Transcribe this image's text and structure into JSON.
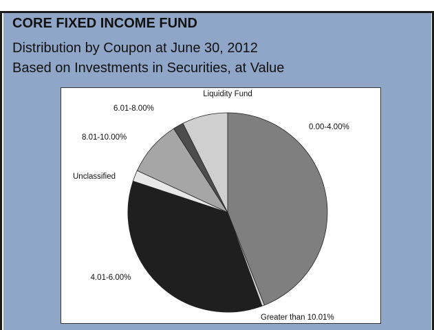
{
  "header": {
    "title": "CORE FIXED INCOME FUND",
    "subtitle_line1": "Distribution by Coupon at June 30, 2012",
    "subtitle_line2": "Based on  Investments in Securities, at Value"
  },
  "colors": {
    "panel_bg": "#8fa6c8",
    "frame": "#1a1a1a"
  },
  "chart_data": {
    "type": "pie",
    "title": "CORE FIXED INCOME FUND",
    "subtitle": "Distribution by Coupon at June 30, 2012 / Based on  Investments in Securities, at Value",
    "start_angle_deg": 0,
    "direction": "clockwise",
    "slices": [
      {
        "label": "0.00-4.00%",
        "value": 44.0,
        "color": "#7f7f7f"
      },
      {
        "label": "Greater than 10.01%",
        "value": 0.4,
        "color": "#d9d9d9"
      },
      {
        "label": "4.01-6.00%",
        "value": 35.7,
        "color": "#1f1f1f"
      },
      {
        "label": "Unclassified",
        "value": 1.8,
        "color": "#e8e8e8"
      },
      {
        "label": "8.01-10.00%",
        "value": 9.0,
        "color": "#a6a6a6"
      },
      {
        "label": "6.01-8.00%",
        "value": 1.7,
        "color": "#4d4d4d"
      },
      {
        "label": "Liquidity Fund",
        "value": 7.4,
        "color": "#cfcfcf"
      }
    ]
  }
}
